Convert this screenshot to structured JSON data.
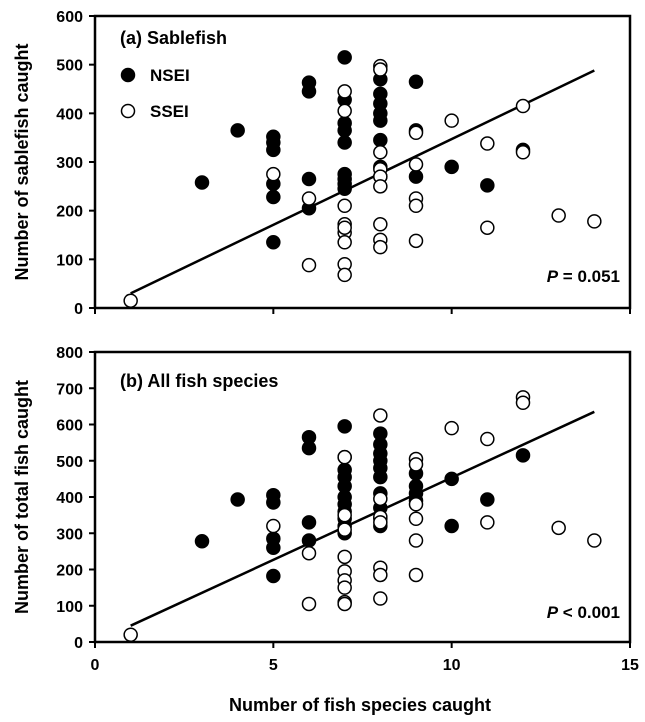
{
  "chart_data": [
    {
      "type": "scatter",
      "title": "(a) Sablefish",
      "xlabel": "",
      "ylabel": "Number of sablefish caught",
      "xlim": [
        0,
        15
      ],
      "ylim": [
        0,
        600
      ],
      "xticks": [],
      "yticks": [
        "0",
        "100",
        "200",
        "300",
        "400",
        "500",
        "600"
      ],
      "legend_position": "top-left",
      "annotation": {
        "italic": "P",
        "rest": " = 0.051"
      },
      "trend_line": {
        "x": [
          1,
          14
        ],
        "y": [
          30,
          488
        ]
      },
      "series": [
        {
          "name": "NSEI",
          "marker": "filled",
          "color": "#000000",
          "x": [
            3,
            4,
            5,
            5,
            5,
            5,
            5,
            5,
            6,
            6,
            6,
            6,
            7,
            7,
            7,
            7,
            7,
            7,
            7,
            7,
            7,
            8,
            8,
            8,
            8,
            8,
            8,
            8,
            8,
            9,
            9,
            9,
            10,
            11,
            12
          ],
          "y": [
            258,
            365,
            352,
            340,
            325,
            255,
            228,
            135,
            463,
            445,
            265,
            205,
            515,
            428,
            380,
            365,
            340,
            275,
            265,
            255,
            245,
            470,
            440,
            420,
            400,
            385,
            345,
            290,
            270,
            465,
            365,
            270,
            290,
            252,
            325
          ]
        },
        {
          "name": "SSEI",
          "marker": "open",
          "color": "#000000",
          "x": [
            1,
            5,
            6,
            6,
            7,
            7,
            7,
            7,
            7,
            7,
            7,
            7,
            7,
            8,
            8,
            8,
            8,
            8,
            8,
            8,
            8,
            8,
            9,
            9,
            9,
            9,
            9,
            10,
            11,
            11,
            12,
            12,
            13,
            14
          ],
          "y": [
            15,
            275,
            225,
            88,
            445,
            405,
            210,
            172,
            155,
            135,
            90,
            68,
            165,
            497,
            490,
            320,
            285,
            270,
            250,
            172,
            140,
            125,
            360,
            295,
            225,
            210,
            138,
            385,
            338,
            165,
            415,
            320,
            190,
            178
          ]
        }
      ]
    },
    {
      "type": "scatter",
      "title": "(b) All fish species",
      "xlabel": "Number of fish species caught",
      "ylabel": "Number of total fish caught",
      "xlim": [
        0,
        15
      ],
      "ylim": [
        0,
        800
      ],
      "xticks": [
        "0",
        "5",
        "10",
        "15"
      ],
      "yticks": [
        "0",
        "100",
        "200",
        "300",
        "400",
        "500",
        "600",
        "700",
        "800"
      ],
      "annotation": {
        "italic": "P",
        "rest": " < 0.001"
      },
      "trend_line": {
        "x": [
          1,
          14
        ],
        "y": [
          45,
          635
        ]
      },
      "series": [
        {
          "name": "NSEI",
          "marker": "filled",
          "color": "#000000",
          "x": [
            3,
            4,
            5,
            5,
            5,
            5,
            5,
            6,
            6,
            6,
            6,
            7,
            7,
            7,
            7,
            7,
            7,
            7,
            7,
            7,
            7,
            7,
            8,
            8,
            8,
            8,
            8,
            8,
            8,
            8,
            8,
            8,
            9,
            9,
            9,
            9,
            10,
            10,
            11,
            12
          ],
          "y": [
            278,
            393,
            405,
            385,
            285,
            260,
            182,
            565,
            535,
            330,
            280,
            595,
            510,
            475,
            455,
            430,
            400,
            380,
            360,
            340,
            320,
            300,
            575,
            545,
            520,
            500,
            480,
            455,
            410,
            370,
            340,
            320,
            465,
            430,
            410,
            390,
            450,
            320,
            393,
            515
          ]
        },
        {
          "name": "SSEI",
          "marker": "open",
          "color": "#000000",
          "x": [
            1,
            5,
            6,
            6,
            7,
            7,
            7,
            7,
            7,
            7,
            7,
            7,
            7,
            8,
            8,
            8,
            8,
            8,
            8,
            8,
            9,
            9,
            9,
            9,
            9,
            9,
            10,
            11,
            11,
            12,
            12,
            13,
            14
          ],
          "y": [
            20,
            320,
            245,
            105,
            510,
            350,
            310,
            235,
            195,
            170,
            150,
            110,
            105,
            625,
            395,
            345,
            330,
            205,
            185,
            120,
            505,
            490,
            380,
            340,
            280,
            185,
            590,
            560,
            330,
            675,
            660,
            315,
            280
          ]
        }
      ]
    }
  ]
}
